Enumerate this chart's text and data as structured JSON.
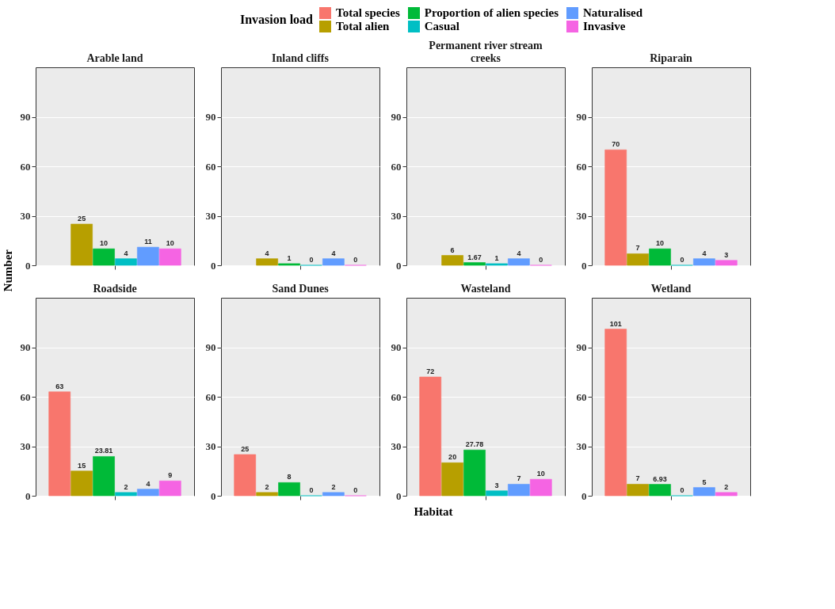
{
  "chart_data": [
    {
      "type": "bar",
      "title": "Arable land",
      "ylabel": "Number",
      "legend_title": "Invasion load",
      "legend": "top",
      "grid": "y",
      "data_labels": true,
      "categories": [
        null
      ],
      "ylim": [
        0,
        120
      ],
      "yticks": [
        0,
        30,
        60,
        90
      ],
      "series": [
        {
          "name": "Total species",
          "color": "#f8766d",
          "values": [
            null
          ]
        },
        {
          "name": "Total alien",
          "color": "#b79f00",
          "values": [
            25
          ]
        },
        {
          "name": "Proportion of alien species",
          "color": "#00ba38",
          "values": [
            10
          ]
        },
        {
          "name": "Casual",
          "color": "#00bfc4",
          "values": [
            4
          ]
        },
        {
          "name": "Naturalised",
          "color": "#619cff",
          "values": [
            11
          ]
        },
        {
          "name": "Invasive",
          "color": "#f564e3",
          "values": [
            10
          ]
        }
      ]
    },
    {
      "type": "bar",
      "title": "Inland cliffs",
      "grid": "y",
      "data_labels": true,
      "categories": [
        null
      ],
      "ylim": [
        0,
        120
      ],
      "yticks": [
        0,
        30,
        60,
        90
      ],
      "series": [
        {
          "color": "#f8766d",
          "values": [
            null
          ]
        },
        {
          "color": "#b79f00",
          "values": [
            4
          ]
        },
        {
          "color": "#00ba38",
          "values": [
            1
          ]
        },
        {
          "color": "#00bfc4",
          "values": [
            0
          ]
        },
        {
          "color": "#619cff",
          "values": [
            4
          ]
        },
        {
          "color": "#f564e3",
          "values": [
            0
          ]
        }
      ]
    },
    {
      "type": "bar",
      "title": "Permanent river stream creeks",
      "grid": "y",
      "data_labels": true,
      "categories": [
        null
      ],
      "ylim": [
        0,
        120
      ],
      "yticks": [
        0,
        30,
        60,
        90
      ],
      "series": [
        {
          "color": "#f8766d",
          "values": [
            null
          ]
        },
        {
          "color": "#b79f00",
          "values": [
            6
          ]
        },
        {
          "color": "#00ba38",
          "values": [
            1.67
          ]
        },
        {
          "color": "#00bfc4",
          "values": [
            1
          ]
        },
        {
          "color": "#619cff",
          "values": [
            4
          ]
        },
        {
          "color": "#f564e3",
          "values": [
            0
          ]
        }
      ]
    },
    {
      "type": "bar",
      "title": "Riparain",
      "grid": "y",
      "data_labels": true,
      "categories": [
        null
      ],
      "ylim": [
        0,
        120
      ],
      "yticks": [
        0,
        30,
        60,
        90
      ],
      "series": [
        {
          "color": "#f8766d",
          "values": [
            70
          ]
        },
        {
          "color": "#b79f00",
          "values": [
            7
          ]
        },
        {
          "color": "#00ba38",
          "values": [
            10
          ]
        },
        {
          "color": "#00bfc4",
          "values": [
            0
          ]
        },
        {
          "color": "#619cff",
          "values": [
            4
          ]
        },
        {
          "color": "#f564e3",
          "values": [
            3
          ]
        }
      ]
    },
    {
      "type": "bar",
      "title": "Roadside",
      "grid": "y",
      "data_labels": true,
      "categories": [
        null
      ],
      "ylim": [
        0,
        120
      ],
      "yticks": [
        0,
        30,
        60,
        90
      ],
      "series": [
        {
          "color": "#f8766d",
          "values": [
            63
          ]
        },
        {
          "color": "#b79f00",
          "values": [
            15
          ]
        },
        {
          "color": "#00ba38",
          "values": [
            23.81
          ]
        },
        {
          "color": "#00bfc4",
          "values": [
            2
          ]
        },
        {
          "color": "#619cff",
          "values": [
            4
          ]
        },
        {
          "color": "#f564e3",
          "values": [
            9
          ]
        }
      ]
    },
    {
      "type": "bar",
      "title": "Sand Dunes",
      "xlabel": "Habitat",
      "grid": "y",
      "data_labels": true,
      "categories": [
        null
      ],
      "ylim": [
        0,
        120
      ],
      "yticks": [
        0,
        30,
        60,
        90
      ],
      "series": [
        {
          "color": "#f8766d",
          "values": [
            25
          ]
        },
        {
          "color": "#b79f00",
          "values": [
            2
          ]
        },
        {
          "color": "#00ba38",
          "values": [
            8
          ]
        },
        {
          "color": "#00bfc4",
          "values": [
            0
          ]
        },
        {
          "color": "#619cff",
          "values": [
            2
          ]
        },
        {
          "color": "#f564e3",
          "values": [
            0
          ]
        }
      ]
    },
    {
      "type": "bar",
      "title": "Wasteland",
      "grid": "y",
      "data_labels": true,
      "categories": [
        null
      ],
      "ylim": [
        0,
        120
      ],
      "yticks": [
        0,
        30,
        60,
        90
      ],
      "series": [
        {
          "color": "#f8766d",
          "values": [
            72
          ]
        },
        {
          "color": "#b79f00",
          "values": [
            20
          ]
        },
        {
          "color": "#00ba38",
          "values": [
            27.78
          ]
        },
        {
          "color": "#00bfc4",
          "values": [
            3
          ]
        },
        {
          "color": "#619cff",
          "values": [
            7
          ]
        },
        {
          "color": "#f564e3",
          "values": [
            10
          ]
        }
      ]
    },
    {
      "type": "bar",
      "title": "Wetland",
      "grid": "y",
      "data_labels": true,
      "categories": [
        null
      ],
      "ylim": [
        0,
        120
      ],
      "yticks": [
        0,
        30,
        60,
        90
      ],
      "series": [
        {
          "color": "#f8766d",
          "values": [
            101
          ]
        },
        {
          "color": "#b79f00",
          "values": [
            7
          ]
        },
        {
          "color": "#00ba38",
          "values": [
            6.93
          ]
        },
        {
          "color": "#00bfc4",
          "values": [
            0
          ]
        },
        {
          "color": "#619cff",
          "values": [
            5
          ]
        },
        {
          "color": "#f564e3",
          "values": [
            2
          ]
        }
      ]
    }
  ]
}
